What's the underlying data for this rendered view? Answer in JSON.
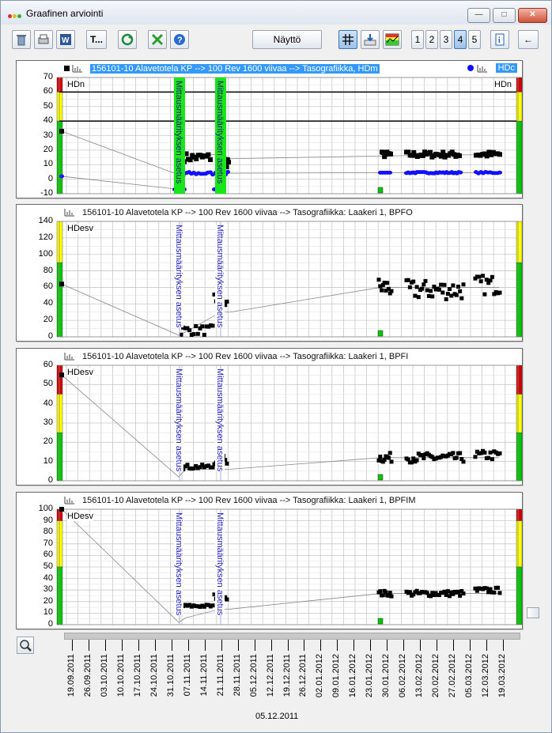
{
  "window": {
    "title": "Graafinen arviointi",
    "min_glyph": "—",
    "max_glyph": "□",
    "close_glyph": "✕"
  },
  "toolbar": {
    "text_button_label": "T...",
    "display_button_label": "Näyttö",
    "page_buttons": [
      "1",
      "2",
      "3",
      "4",
      "5"
    ],
    "active_page": "4",
    "back_label": "←"
  },
  "panels": [
    {
      "title": "156101-10 Alavetotela KP --> 100 Rev 1600 viivaa --> Tasografiikka, HDm",
      "tag_left": "HDn",
      "tag_right": "HDn",
      "right_legend": "HDc",
      "y_ticks": [
        "70",
        "60",
        "50",
        "40",
        "30",
        "20",
        "10",
        "0",
        "-10"
      ],
      "marker_label_1": "Mittausmäärityksen asetus",
      "marker_label_2": "Mittausmäärityksen asetus"
    },
    {
      "title": "156101-10 Alavetotela KP --> 100 Rev 1600 viivaa --> Tasografiikka: Laakeri 1, BPFO",
      "tag_left": "HDesv",
      "y_ticks": [
        "140",
        "120",
        "100",
        "80",
        "60",
        "40",
        "20",
        "0"
      ],
      "marker_label_1": "Mittausmäärityksen asetus",
      "marker_label_2": "Mittausmäärityksen asetus"
    },
    {
      "title": "156101-10 Alavetotela KP --> 100 Rev 1600 viivaa --> Tasografiikka: Laakeri 1, BPFI",
      "tag_left": "HDesv",
      "y_ticks": [
        "60",
        "50",
        "40",
        "30",
        "20",
        "10",
        "0"
      ],
      "marker_label_1": "Mittausmäärityksen asetus",
      "marker_label_2": "Mittausmäärityksen asetus"
    },
    {
      "title": "156101-10 Alavetotela KP --> 100 Rev 1600 viivaa --> Tasografiikka: Laakeri 1, BPFIM",
      "tag_left": "HDesv",
      "y_ticks": [
        "100",
        "90",
        "80",
        "70",
        "60",
        "50",
        "40",
        "30",
        "20",
        "10",
        "0"
      ],
      "marker_label_1": "Mittausmäärityksen asetus",
      "marker_label_2": "Mittausmäärityksen asetus"
    }
  ],
  "x_axis": {
    "date_labels": [
      "19.09.2011",
      "26.09.2011",
      "03.10.2011",
      "10.10.2011",
      "17.10.2011",
      "24.10.2011",
      "31.10.2011",
      "07.11.2011",
      "14.11.2011",
      "21.11.2011",
      "28.11.2011",
      "05.12.2011",
      "12.12.2011",
      "19.12.2011",
      "26.12.2011",
      "02.01.2012",
      "09.01.2012",
      "16.01.2012",
      "23.01.2012",
      "30.01.2012",
      "06.02.2012",
      "13.02.2012",
      "20.02.2012",
      "27.02.2012",
      "05.03.2012",
      "12.03.2012",
      "19.03.2012"
    ],
    "cursor_date": "05.12.2011"
  },
  "colors": {
    "alarm_red": "#d40000",
    "alarm_yellow": "#ffff00",
    "alarm_green": "#00c800",
    "marker_green": "#19e619",
    "series_black": "#000000",
    "series_blue": "#1010ff",
    "grid": "#c8c8c8"
  }
}
